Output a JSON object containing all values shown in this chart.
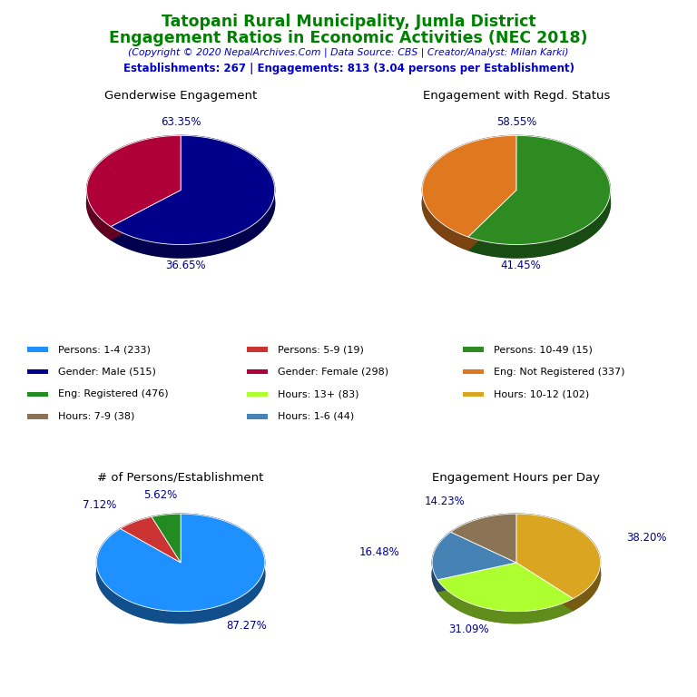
{
  "title_line1": "Tatopani Rural Municipality, Jumla District",
  "title_line2": "Engagement Ratios in Economic Activities (NEC 2018)",
  "subtitle": "(Copyright © 2020 NepalArchives.Com | Data Source: CBS | Creator/Analyst: Milan Karki)",
  "stats_line": "Establishments: 267 | Engagements: 813 (3.04 persons per Establishment)",
  "title_color": "#008000",
  "subtitle_color": "#0000CC",
  "stats_color": "#0000CC",
  "pie1_title": "Genderwise Engagement",
  "pie1_values": [
    63.35,
    36.65
  ],
  "pie1_colors": [
    "#00008B",
    "#B0003A"
  ],
  "pie1_labels": [
    "63.35%",
    "36.65%"
  ],
  "pie1_label_angles": [
    90,
    270
  ],
  "pie2_title": "Engagement with Regd. Status",
  "pie2_values": [
    58.55,
    41.45
  ],
  "pie2_colors": [
    "#2E8B22",
    "#E07820"
  ],
  "pie2_labels": [
    "58.55%",
    "41.45%"
  ],
  "pie2_label_angles": [
    90,
    270
  ],
  "pie3_title": "# of Persons/Establishment",
  "pie3_values": [
    87.27,
    7.12,
    5.62
  ],
  "pie3_colors": [
    "#1E90FF",
    "#CC3333",
    "#228B22"
  ],
  "pie3_labels": [
    "87.27%",
    "7.12%",
    "5.62%"
  ],
  "pie4_title": "Engagement Hours per Day",
  "pie4_values": [
    38.2,
    31.09,
    16.48,
    14.23
  ],
  "pie4_colors": [
    "#DAA520",
    "#ADFF2F",
    "#4682B4",
    "#8B7355"
  ],
  "pie4_labels": [
    "38.20%",
    "31.09%",
    "16.48%",
    "14.23%"
  ],
  "legend_items": [
    {
      "label": "Persons: 1-4 (233)",
      "color": "#1E90FF"
    },
    {
      "label": "Persons: 5-9 (19)",
      "color": "#CC3333"
    },
    {
      "label": "Persons: 10-49 (15)",
      "color": "#2E8B22"
    },
    {
      "label": "Gender: Male (515)",
      "color": "#00008B"
    },
    {
      "label": "Gender: Female (298)",
      "color": "#B0003A"
    },
    {
      "label": "Eng: Not Registered (337)",
      "color": "#E07820"
    },
    {
      "label": "Eng: Registered (476)",
      "color": "#228B22"
    },
    {
      "label": "Hours: 13+ (83)",
      "color": "#ADFF2F"
    },
    {
      "label": "Hours: 10-12 (102)",
      "color": "#DAA520"
    },
    {
      "label": "Hours: 7-9 (38)",
      "color": "#8B7355"
    },
    {
      "label": "Hours: 1-6 (44)",
      "color": "#4682B4"
    }
  ],
  "label_color": "#00008B",
  "background_color": "#FFFFFF"
}
